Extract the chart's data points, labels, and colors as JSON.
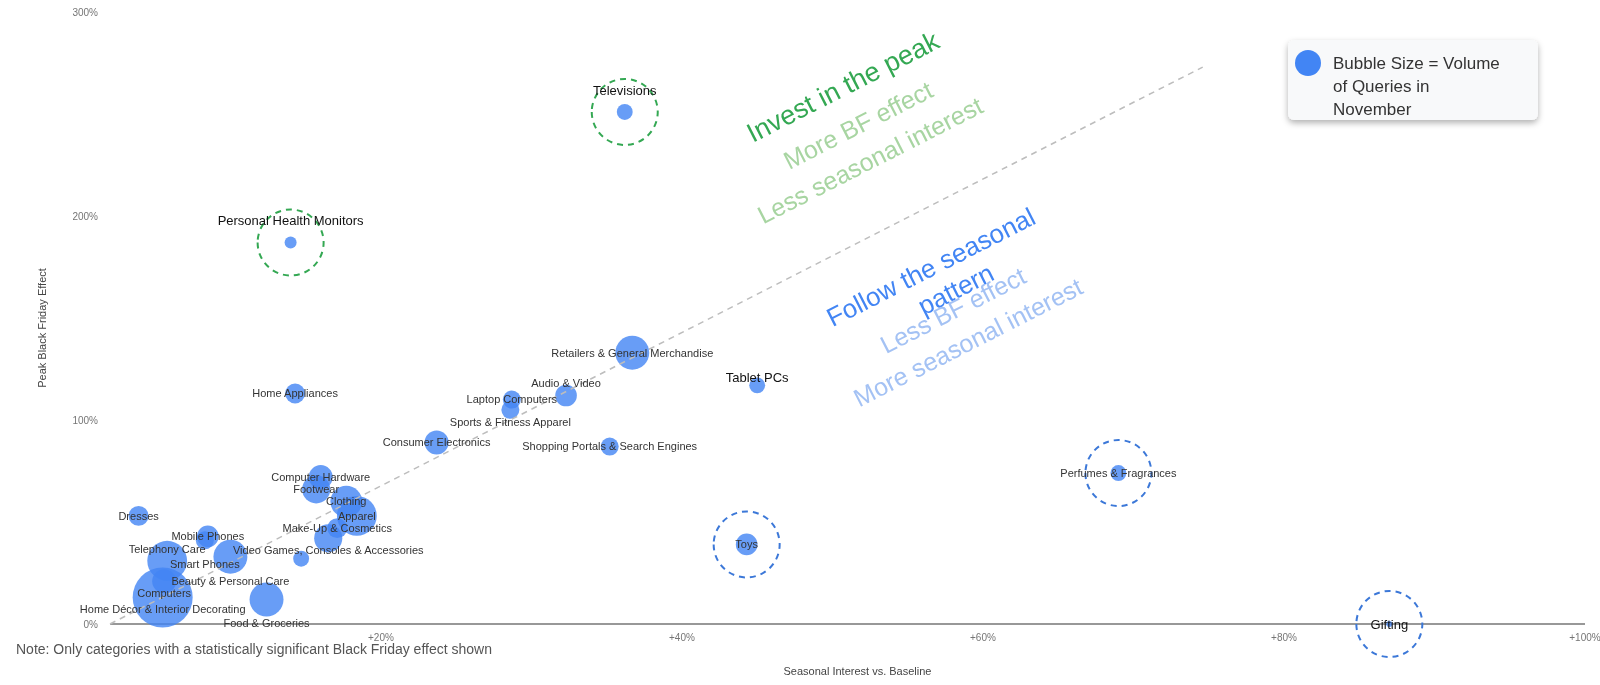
{
  "chart_data": {
    "type": "bubble",
    "xlabel": "Seasonal Interest vs. Baseline",
    "ylabel": "Peak Black Friday Effect",
    "xlim": [
      2,
      100
    ],
    "xticks": [
      {
        "value": 20,
        "label": "+20%"
      },
      {
        "value": 40,
        "label": "+40%"
      },
      {
        "value": 60,
        "label": "+60%"
      },
      {
        "value": 80,
        "label": "+80%"
      },
      {
        "value": 100,
        "label": "+100%"
      }
    ],
    "ylim": [
      0,
      300
    ],
    "yticks": [
      {
        "value": 0,
        "label": "0%"
      },
      {
        "value": 100,
        "label": "100%"
      },
      {
        "value": 200,
        "label": "200%"
      },
      {
        "value": 300,
        "label": "300%"
      }
    ],
    "grid": false,
    "legend": "top right",
    "series": [
      {
        "name": "Bubble Size = Volume of Queries in November",
        "type": "bubble",
        "color": "#4285f4",
        "x": [
          36.2,
          14.0,
          36.7,
          45.0,
          14.3,
          28.7,
          32.3,
          28.6,
          23.7,
          35.2,
          69.0,
          44.3,
          87,
          16.0,
          15.7,
          17.7,
          18.4,
          17.1,
          16.5,
          3.9,
          8.5,
          8.3,
          10.0,
          14.7,
          5.8,
          5.6,
          5.5,
          12.4
        ],
        "values": [
          251,
          187,
          133,
          117,
          113,
          110,
          112,
          105,
          89,
          87,
          74,
          39,
          0,
          72,
          66,
          60,
          53,
          47,
          42,
          53,
          43,
          41,
          33,
          32,
          31,
          21,
          13,
          12
        ],
        "sizes": [
          0.07,
          0.04,
          0.32,
          0.07,
          0.11,
          0.09,
          0.13,
          0.09,
          0.16,
          0.09,
          0.07,
          0.13,
          0.01,
          0.16,
          0.22,
          0.28,
          0.44,
          0.11,
          0.22,
          0.11,
          0.13,
          0.09,
          0.32,
          0.07,
          0.44,
          0.16,
          1,
          0.32
        ]
      },
      {
        "type": "line",
        "color": "#bdbdbd",
        "line_style": "dashed",
        "x": [
          2,
          74.6
        ],
        "values": [
          0,
          273
        ]
      }
    ],
    "annotations": [
      {
        "text": "Televisions",
        "x": 36.2,
        "y": 251
      },
      {
        "text": "Personal Health Monitors",
        "x": 14.0,
        "y": 187
      },
      {
        "text": "Retailers & General Merchandise",
        "x": 36.7,
        "y": 133
      },
      {
        "text": "Tablet PCs",
        "x": 45.0,
        "y": 117
      },
      {
        "text": "Home Appliances",
        "x": 14.3,
        "y": 113
      },
      {
        "text": "Laptop Computers",
        "x": 28.7,
        "y": 110
      },
      {
        "text": "Audio & Video",
        "x": 32.3,
        "y": 112
      },
      {
        "text": "Sports & Fitness Apparel",
        "x": 28.6,
        "y": 105
      },
      {
        "text": "Consumer Electronics",
        "x": 23.7,
        "y": 89
      },
      {
        "text": "Shopping Portals & Search Engines",
        "x": 35.2,
        "y": 87
      },
      {
        "text": "Perfumes & Fragrances",
        "x": 69.0,
        "y": 74
      },
      {
        "text": "Toys",
        "x": 44.3,
        "y": 39
      },
      {
        "text": "Gifting",
        "x": 87,
        "y": 0
      },
      {
        "text": "Computer Hardware",
        "x": 16.0,
        "y": 72
      },
      {
        "text": "Footwear",
        "x": 15.7,
        "y": 66
      },
      {
        "text": "Clothing",
        "x": 17.7,
        "y": 60
      },
      {
        "text": "Apparel",
        "x": 18.4,
        "y": 53
      },
      {
        "text": "Make-Up & Cosmetics",
        "x": 17.1,
        "y": 47
      },
      {
        "text": "Video Games, Consoles & Accessories",
        "x": 16.5,
        "y": 42
      },
      {
        "text": "Dresses",
        "x": 3.9,
        "y": 53
      },
      {
        "text": "Mobile Phones",
        "x": 8.5,
        "y": 43
      },
      {
        "text": "Smart Phones",
        "x": 8.3,
        "y": 41
      },
      {
        "text": "Beauty & Personal Care",
        "x": 10.0,
        "y": 33
      },
      {
        "text": "Telephony Care",
        "x": 5.8,
        "y": 31
      },
      {
        "text": "Computers",
        "x": 5.6,
        "y": 21
      },
      {
        "text": "Home Décor & Interior Decorating",
        "x": 5.5,
        "y": 13
      },
      {
        "text": "Food & Groceries",
        "x": 12.4,
        "y": 12
      },
      "Invest in the peak",
      "More BF effect",
      "Less seasonal interest",
      "Follow the seasonal pattern",
      "Less BF effect",
      "More seasonal interest",
      "Note: Only categories with a statistically significant Black Friday effect shown"
    ]
  }
}
